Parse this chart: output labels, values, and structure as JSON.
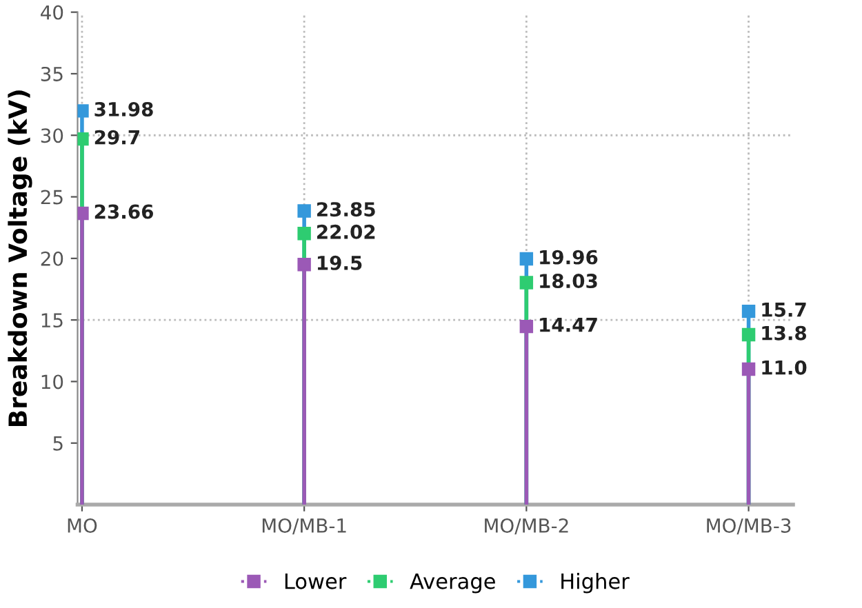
{
  "chart_data": {
    "type": "lollipop",
    "ylabel": "Breakdown Voltage (kV)",
    "categories": [
      "MO",
      "MO/MB-1",
      "MO/MB-2",
      "MO/MB-3"
    ],
    "series": [
      {
        "name": "Lower",
        "color": "#9b59b6",
        "values": [
          23.66,
          19.5,
          14.47,
          11.0
        ],
        "value_labels": [
          "23.66",
          "19.5",
          "14.47",
          "11.0"
        ]
      },
      {
        "name": "Average",
        "color": "#2ecc71",
        "values": [
          29.7,
          22.02,
          18.03,
          13.8
        ]
      },
      {
        "name": "Higher",
        "color": "#3498db",
        "values": [
          31.98,
          23.85,
          19.96,
          15.7
        ]
      }
    ],
    "ylim": [
      0,
      40
    ],
    "yticks": [
      5,
      10,
      15,
      20,
      25,
      30,
      35,
      40
    ],
    "grid": "x",
    "legend": "bottom",
    "marker": "square",
    "data_labels": true,
    "ref_lines": [
      {
        "axis": "y",
        "value": 15,
        "color": "#bbbbbb",
        "line_style": "dotted"
      },
      {
        "axis": "y",
        "value": 30,
        "color": "#bbbbbb",
        "line_style": "dotted"
      }
    ]
  }
}
